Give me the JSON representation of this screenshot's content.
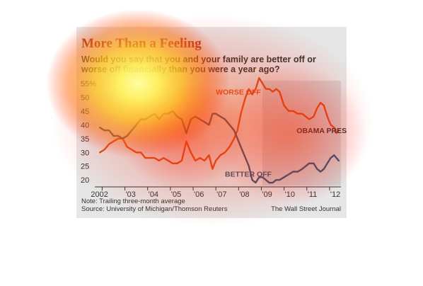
{
  "header": {
    "title": "More Than a Feeling",
    "question": "Would you say that you and your family are better off or worse off financially than you were a year ago?"
  },
  "footer": {
    "note": "Note: Trailing three-month average",
    "source": "Source: University of Michigan/Thomson Reuters",
    "credit": "The Wall Street Journal"
  },
  "chart_data": {
    "type": "line",
    "ylim": [
      18,
      56
    ],
    "y_ticks": [
      20,
      25,
      30,
      35,
      40,
      45,
      50,
      55
    ],
    "y_tick_labels": [
      "20",
      "25",
      "30",
      "35",
      "40",
      "45",
      "50",
      "55%"
    ],
    "x_ticks": [
      2002,
      2003,
      2004,
      2005,
      2006,
      2007,
      2008,
      2009,
      2010,
      2011,
      2012
    ],
    "x_tick_labels": [
      "2002",
      "'03",
      "'04",
      "'05",
      "'06",
      "'07",
      "'08",
      "'09",
      "'10",
      "'11",
      "'12"
    ],
    "xlim": [
      2001.8,
      2012.5
    ],
    "grid": false,
    "shaded_period": {
      "label": "OBAMA PRESIDENCY",
      "from": 2009.05,
      "to": 2012.5
    },
    "series": [
      {
        "name": "WORSE OFF",
        "color": "#d9531e",
        "points": [
          [
            2001.9,
            30
          ],
          [
            2002.1,
            31
          ],
          [
            2002.3,
            33
          ],
          [
            2002.5,
            34
          ],
          [
            2002.7,
            35
          ],
          [
            2002.9,
            35
          ],
          [
            2003.1,
            32
          ],
          [
            2003.3,
            31
          ],
          [
            2003.5,
            30
          ],
          [
            2003.7,
            30
          ],
          [
            2003.9,
            28
          ],
          [
            2004.1,
            28
          ],
          [
            2004.3,
            28
          ],
          [
            2004.5,
            27
          ],
          [
            2004.7,
            28
          ],
          [
            2004.9,
            27
          ],
          [
            2005.1,
            26
          ],
          [
            2005.3,
            26
          ],
          [
            2005.5,
            27
          ],
          [
            2005.7,
            34
          ],
          [
            2005.9,
            30
          ],
          [
            2006.1,
            27
          ],
          [
            2006.3,
            28
          ],
          [
            2006.5,
            27
          ],
          [
            2006.7,
            29
          ],
          [
            2006.85,
            24
          ],
          [
            2007.0,
            27
          ],
          [
            2007.2,
            29
          ],
          [
            2007.4,
            30
          ],
          [
            2007.6,
            32
          ],
          [
            2007.8,
            35
          ],
          [
            2007.95,
            38
          ],
          [
            2008.1,
            44
          ],
          [
            2008.3,
            50
          ],
          [
            2008.45,
            53
          ],
          [
            2008.6,
            51
          ],
          [
            2008.75,
            53
          ],
          [
            2008.9,
            57
          ],
          [
            2009.05,
            55
          ],
          [
            2009.2,
            53
          ],
          [
            2009.35,
            53
          ],
          [
            2009.5,
            52
          ],
          [
            2009.65,
            53
          ],
          [
            2009.8,
            52
          ],
          [
            2010.0,
            47
          ],
          [
            2010.2,
            45
          ],
          [
            2010.4,
            45
          ],
          [
            2010.6,
            44
          ],
          [
            2010.8,
            44
          ],
          [
            2010.95,
            43
          ],
          [
            2011.1,
            42
          ],
          [
            2011.3,
            43
          ],
          [
            2011.45,
            46
          ],
          [
            2011.6,
            48
          ],
          [
            2011.75,
            47
          ],
          [
            2011.9,
            43
          ],
          [
            2012.05,
            40
          ],
          [
            2012.2,
            39
          ],
          [
            2012.3,
            37
          ],
          [
            2012.4,
            38
          ]
        ]
      },
      {
        "name": "BETTER OFF",
        "color": "#2e5979",
        "points": [
          [
            2001.9,
            39
          ],
          [
            2002.1,
            38
          ],
          [
            2002.3,
            38
          ],
          [
            2002.5,
            36
          ],
          [
            2002.7,
            36
          ],
          [
            2002.9,
            35
          ],
          [
            2003.1,
            36
          ],
          [
            2003.3,
            38
          ],
          [
            2003.5,
            40
          ],
          [
            2003.7,
            42
          ],
          [
            2003.9,
            42
          ],
          [
            2004.1,
            43
          ],
          [
            2004.3,
            44
          ],
          [
            2004.5,
            42
          ],
          [
            2004.7,
            44
          ],
          [
            2004.9,
            44
          ],
          [
            2005.1,
            45
          ],
          [
            2005.3,
            43
          ],
          [
            2005.5,
            42
          ],
          [
            2005.7,
            37
          ],
          [
            2005.9,
            42
          ],
          [
            2006.1,
            43
          ],
          [
            2006.3,
            42
          ],
          [
            2006.5,
            41
          ],
          [
            2006.7,
            40
          ],
          [
            2006.85,
            44
          ],
          [
            2007.0,
            44
          ],
          [
            2007.2,
            43
          ],
          [
            2007.4,
            42
          ],
          [
            2007.6,
            40
          ],
          [
            2007.8,
            38
          ],
          [
            2007.95,
            35
          ],
          [
            2008.1,
            32
          ],
          [
            2008.3,
            28
          ],
          [
            2008.45,
            25
          ],
          [
            2008.6,
            20
          ],
          [
            2008.75,
            19
          ],
          [
            2008.9,
            21
          ],
          [
            2009.05,
            21
          ],
          [
            2009.2,
            20
          ],
          [
            2009.35,
            19
          ],
          [
            2009.5,
            19
          ],
          [
            2009.65,
            20
          ],
          [
            2009.8,
            20
          ],
          [
            2010.0,
            21
          ],
          [
            2010.2,
            22
          ],
          [
            2010.4,
            23
          ],
          [
            2010.6,
            23
          ],
          [
            2010.8,
            24
          ],
          [
            2010.95,
            25
          ],
          [
            2011.1,
            26
          ],
          [
            2011.3,
            26
          ],
          [
            2011.45,
            24
          ],
          [
            2011.6,
            23
          ],
          [
            2011.75,
            24
          ],
          [
            2011.9,
            26
          ],
          [
            2012.05,
            28
          ],
          [
            2012.2,
            29
          ],
          [
            2012.3,
            28
          ],
          [
            2012.4,
            27
          ]
        ]
      }
    ],
    "annotations": [
      {
        "text": "WORSE OFF",
        "x": 2007.0,
        "y": 51,
        "color": "#d9531e"
      },
      {
        "text": "BETTER OFF",
        "x": 2007.4,
        "y": 21.2,
        "color": "#2e5979"
      },
      {
        "text": "OBAMA PRESIDENCY",
        "x": 2010.55,
        "y": 37,
        "color": "#333333"
      }
    ]
  }
}
